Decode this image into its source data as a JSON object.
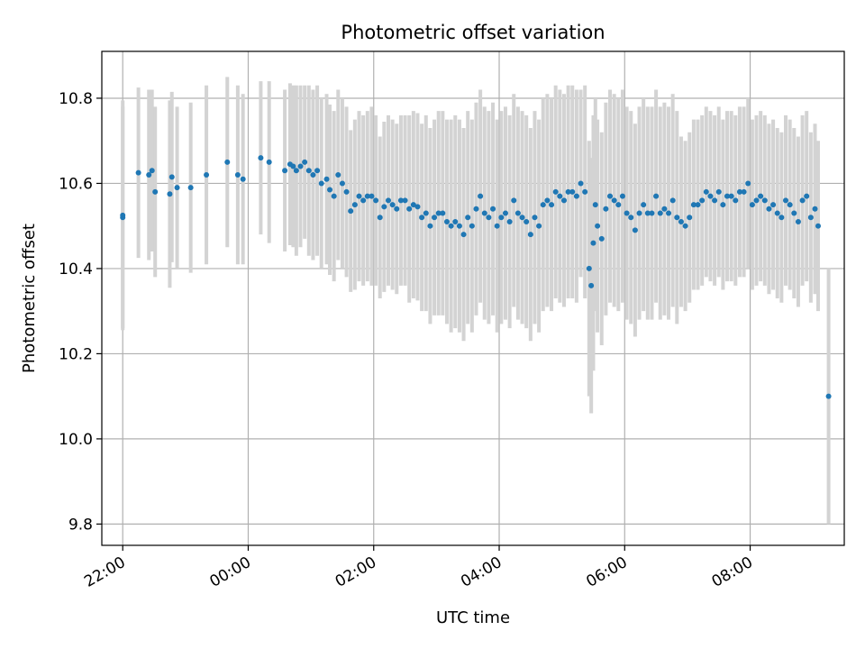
{
  "chart_data": {
    "type": "scatter",
    "title": "Photometric offset variation",
    "xlabel": "UTC time",
    "ylabel": "Photometric offset",
    "grid": true,
    "xlim": [
      "21:40",
      "09:30"
    ],
    "ylim": [
      9.75,
      10.91
    ],
    "xticks": [
      "22:00",
      "00:00",
      "02:00",
      "04:00",
      "06:00",
      "08:00"
    ],
    "yticks": [
      "9.8",
      "10.0",
      "10.2",
      "10.4",
      "10.6",
      "10.8"
    ],
    "colors": {
      "points": "#1f77b4",
      "errorbars": "#d3d3d3",
      "grid": "#b0b0b0"
    },
    "series": [
      {
        "x": [
          "22:00",
          "22:00",
          "22:15",
          "22:25",
          "22:28",
          "22:31",
          "22:45",
          "22:47",
          "22:52",
          "23:05",
          "23:20",
          "23:40",
          "23:50",
          "23:55",
          "00:12",
          "00:20",
          "00:35",
          "00:40",
          "00:43",
          "00:46",
          "00:50",
          "00:54",
          "00:58",
          "01:02",
          "01:06",
          "01:10",
          "01:15",
          "01:18",
          "01:22",
          "01:26",
          "01:30",
          "01:34",
          "01:38",
          "01:42",
          "01:46",
          "01:50",
          "01:54",
          "01:58",
          "02:02",
          "02:06",
          "02:10",
          "02:14",
          "02:18",
          "02:22",
          "02:26",
          "02:30",
          "02:34",
          "02:38",
          "02:42",
          "02:46",
          "02:50",
          "02:54",
          "02:58",
          "03:02",
          "03:06",
          "03:10",
          "03:14",
          "03:18",
          "03:22",
          "03:26",
          "03:30",
          "03:34",
          "03:38",
          "03:42",
          "03:46",
          "03:50",
          "03:54",
          "03:58",
          "04:02",
          "04:06",
          "04:10",
          "04:14",
          "04:18",
          "04:22",
          "04:26",
          "04:30",
          "04:34",
          "04:38",
          "04:42",
          "04:46",
          "04:50",
          "04:54",
          "04:58",
          "05:02",
          "05:06",
          "05:10",
          "05:14",
          "05:18",
          "05:22",
          "05:26",
          "05:28",
          "05:30",
          "05:32",
          "05:34",
          "05:38",
          "05:42",
          "05:46",
          "05:50",
          "05:54",
          "05:58",
          "06:02",
          "06:06",
          "06:10",
          "06:14",
          "06:18",
          "06:22",
          "06:26",
          "06:30",
          "06:34",
          "06:38",
          "06:42",
          "06:46",
          "06:50",
          "06:54",
          "06:58",
          "07:02",
          "07:06",
          "07:10",
          "07:14",
          "07:18",
          "07:22",
          "07:26",
          "07:30",
          "07:34",
          "07:38",
          "07:42",
          "07:46",
          "07:50",
          "07:54",
          "07:58",
          "08:02",
          "08:06",
          "08:10",
          "08:14",
          "08:18",
          "08:22",
          "08:26",
          "08:30",
          "08:34",
          "08:38",
          "08:42",
          "08:46",
          "08:50",
          "08:54",
          "08:58",
          "09:02",
          "09:05",
          "09:15"
        ],
        "y": [
          10.52,
          10.525,
          10.625,
          10.62,
          10.63,
          10.58,
          10.575,
          10.615,
          10.59,
          10.59,
          10.62,
          10.65,
          10.62,
          10.61,
          10.66,
          10.65,
          10.63,
          10.645,
          10.64,
          10.63,
          10.64,
          10.65,
          10.63,
          10.62,
          10.63,
          10.6,
          10.61,
          10.585,
          10.57,
          10.62,
          10.6,
          10.58,
          10.535,
          10.55,
          10.57,
          10.56,
          10.57,
          10.57,
          10.56,
          10.52,
          10.545,
          10.56,
          10.55,
          10.54,
          10.56,
          10.56,
          10.54,
          10.55,
          10.545,
          10.52,
          10.53,
          10.5,
          10.52,
          10.53,
          10.53,
          10.51,
          10.5,
          10.51,
          10.5,
          10.48,
          10.52,
          10.5,
          10.54,
          10.57,
          10.53,
          10.52,
          10.54,
          10.5,
          10.52,
          10.53,
          10.51,
          10.56,
          10.53,
          10.52,
          10.51,
          10.48,
          10.52,
          10.5,
          10.55,
          10.56,
          10.55,
          10.58,
          10.57,
          10.56,
          10.58,
          10.58,
          10.57,
          10.6,
          10.58,
          10.4,
          10.36,
          10.46,
          10.55,
          10.5,
          10.47,
          10.54,
          10.57,
          10.56,
          10.55,
          10.57,
          10.53,
          10.52,
          10.49,
          10.53,
          10.55,
          10.53,
          10.53,
          10.57,
          10.53,
          10.54,
          10.53,
          10.56,
          10.52,
          10.51,
          10.5,
          10.52,
          10.55,
          10.55,
          10.56,
          10.58,
          10.57,
          10.56,
          10.58,
          10.55,
          10.57,
          10.57,
          10.56,
          10.58,
          10.58,
          10.6,
          10.55,
          10.56,
          10.57,
          10.56,
          10.54,
          10.55,
          10.53,
          10.52,
          10.56,
          10.55,
          10.53,
          10.51,
          10.56,
          10.57,
          10.52,
          10.54,
          10.5,
          10.1
        ],
        "yerr": [
          0.26,
          0.27,
          0.2,
          0.2,
          0.19,
          0.2,
          0.22,
          0.2,
          0.19,
          0.2,
          0.21,
          0.2,
          0.21,
          0.2,
          0.18,
          0.19,
          0.19,
          0.19,
          0.19,
          0.2,
          0.19,
          0.18,
          0.2,
          0.2,
          0.2,
          0.2,
          0.2,
          0.2,
          0.2,
          0.2,
          0.2,
          0.2,
          0.19,
          0.2,
          0.2,
          0.2,
          0.2,
          0.21,
          0.2,
          0.19,
          0.2,
          0.2,
          0.2,
          0.2,
          0.2,
          0.2,
          0.22,
          0.22,
          0.22,
          0.22,
          0.23,
          0.23,
          0.23,
          0.24,
          0.24,
          0.24,
          0.25,
          0.25,
          0.25,
          0.25,
          0.25,
          0.25,
          0.25,
          0.25,
          0.25,
          0.25,
          0.25,
          0.25,
          0.25,
          0.25,
          0.25,
          0.25,
          0.25,
          0.25,
          0.25,
          0.25,
          0.25,
          0.25,
          0.25,
          0.25,
          0.25,
          0.25,
          0.25,
          0.25,
          0.25,
          0.25,
          0.25,
          0.22,
          0.25,
          0.3,
          0.3,
          0.3,
          0.25,
          0.25,
          0.25,
          0.25,
          0.25,
          0.25,
          0.25,
          0.25,
          0.25,
          0.25,
          0.25,
          0.25,
          0.25,
          0.25,
          0.25,
          0.25,
          0.25,
          0.25,
          0.25,
          0.25,
          0.25,
          0.2,
          0.2,
          0.2,
          0.2,
          0.2,
          0.2,
          0.2,
          0.2,
          0.2,
          0.2,
          0.2,
          0.2,
          0.2,
          0.2,
          0.2,
          0.2,
          0.2,
          0.2,
          0.2,
          0.2,
          0.2,
          0.2,
          0.2,
          0.2,
          0.2,
          0.2,
          0.2,
          0.2,
          0.2,
          0.2,
          0.2,
          0.2,
          0.2,
          0.2,
          0.3
        ]
      }
    ]
  }
}
